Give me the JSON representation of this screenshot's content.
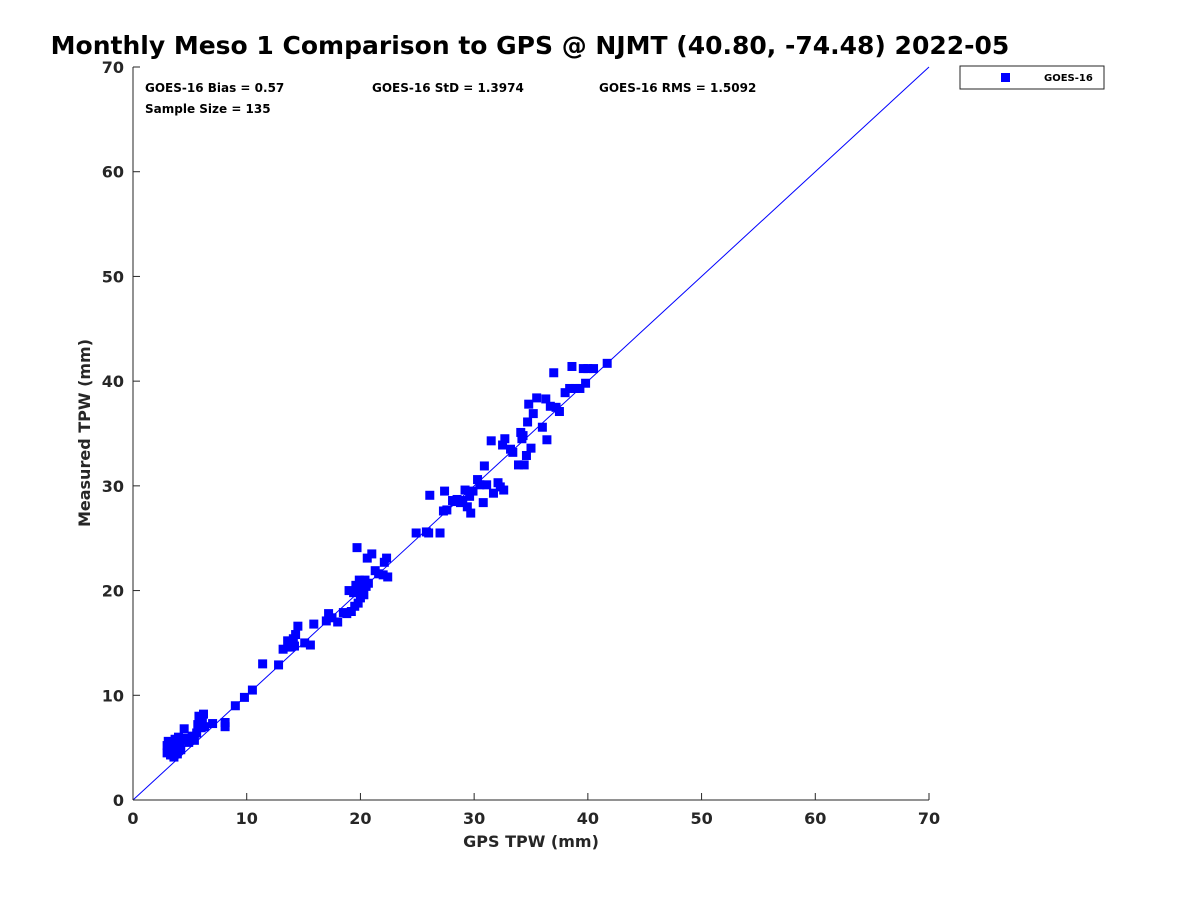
{
  "chart_data": {
    "type": "scatter",
    "title": "Monthly Meso 1 Comparison to GPS @ NJMT (40.80, -74.48) 2022-05",
    "xlabel": "GPS TPW (mm)",
    "ylabel": "Measured TPW (mm)",
    "xlim": [
      0,
      70
    ],
    "ylim": [
      0,
      70
    ],
    "xticks": [
      "0",
      "10",
      "20",
      "30",
      "40",
      "50",
      "60",
      "70"
    ],
    "yticks": [
      "0",
      "10",
      "20",
      "30",
      "40",
      "50",
      "60",
      "70"
    ],
    "grid": false,
    "legend_position": "outside-top-right",
    "reference_line": {
      "from": [
        0,
        0
      ],
      "to": [
        70,
        70
      ],
      "color": "#0000ff"
    },
    "stats": {
      "bias": "GOES-16 Bias = 0.57",
      "std": "GOES-16 StD = 1.3974",
      "rms": "GOES-16 RMS = 1.5092",
      "sample": "Sample Size = 135"
    },
    "series": [
      {
        "name": "GOES-16",
        "color": "#0000ff",
        "marker": "square",
        "points": [
          [
            3.0,
            4.5
          ],
          [
            3.0,
            5.2
          ],
          [
            3.1,
            5.6
          ],
          [
            3.2,
            4.9
          ],
          [
            3.3,
            4.3
          ],
          [
            3.4,
            5.4
          ],
          [
            3.5,
            4.6
          ],
          [
            3.6,
            4.1
          ],
          [
            3.7,
            5.8
          ],
          [
            3.8,
            5.0
          ],
          [
            3.9,
            4.4
          ],
          [
            4.0,
            6.0
          ],
          [
            4.1,
            5.3
          ],
          [
            4.2,
            4.8
          ],
          [
            4.4,
            5.7
          ],
          [
            4.5,
            6.8
          ],
          [
            4.7,
            5.9
          ],
          [
            4.9,
            5.5
          ],
          [
            5.2,
            6.1
          ],
          [
            5.4,
            5.7
          ],
          [
            5.6,
            6.4
          ],
          [
            5.7,
            7.2
          ],
          [
            5.8,
            8.0
          ],
          [
            5.9,
            7.5
          ],
          [
            6.0,
            6.9
          ],
          [
            6.1,
            7.8
          ],
          [
            6.2,
            8.2
          ],
          [
            6.3,
            7.0
          ],
          [
            7.0,
            7.3
          ],
          [
            8.1,
            7.4
          ],
          [
            8.1,
            7.0
          ],
          [
            9.0,
            9.0
          ],
          [
            9.8,
            9.8
          ],
          [
            10.5,
            10.5
          ],
          [
            11.4,
            13.0
          ],
          [
            13.2,
            14.4
          ],
          [
            13.6,
            15.2
          ],
          [
            13.8,
            14.6
          ],
          [
            14.1,
            15.4
          ],
          [
            14.2,
            14.7
          ],
          [
            14.3,
            15.8
          ],
          [
            14.5,
            16.6
          ],
          [
            15.1,
            15.0
          ],
          [
            15.6,
            14.8
          ],
          [
            15.9,
            16.8
          ],
          [
            17.0,
            17.1
          ],
          [
            17.2,
            17.8
          ],
          [
            17.5,
            17.4
          ],
          [
            18.0,
            17.0
          ],
          [
            18.8,
            17.8
          ],
          [
            19.0,
            20.0
          ],
          [
            19.2,
            18.0
          ],
          [
            19.4,
            19.8
          ],
          [
            19.5,
            18.5
          ],
          [
            19.6,
            20.5
          ],
          [
            19.7,
            24.1
          ],
          [
            19.8,
            18.8
          ],
          [
            19.9,
            21.0
          ],
          [
            20.0,
            19.3
          ],
          [
            20.1,
            20.0
          ],
          [
            20.2,
            20.8
          ],
          [
            20.3,
            19.6
          ],
          [
            20.4,
            21.0
          ],
          [
            20.5,
            20.4
          ],
          [
            20.6,
            23.1
          ],
          [
            20.7,
            20.7
          ],
          [
            21.0,
            23.5
          ],
          [
            21.3,
            21.9
          ],
          [
            21.6,
            21.6
          ],
          [
            22.0,
            21.5
          ],
          [
            22.1,
            22.7
          ],
          [
            22.3,
            23.1
          ],
          [
            22.4,
            21.3
          ],
          [
            24.9,
            25.5
          ],
          [
            26.0,
            25.5
          ],
          [
            26.1,
            29.1
          ],
          [
            27.0,
            25.5
          ],
          [
            27.3,
            27.6
          ],
          [
            27.4,
            29.5
          ],
          [
            27.6,
            27.7
          ],
          [
            28.1,
            28.6
          ],
          [
            28.3,
            28.5
          ],
          [
            28.5,
            28.7
          ],
          [
            28.8,
            28.4
          ],
          [
            29.0,
            28.6
          ],
          [
            29.2,
            29.6
          ],
          [
            29.4,
            28.0
          ],
          [
            29.6,
            29.0
          ],
          [
            29.7,
            27.4
          ],
          [
            29.9,
            29.5
          ],
          [
            30.3,
            30.6
          ],
          [
            30.8,
            28.4
          ],
          [
            30.9,
            31.9
          ],
          [
            31.1,
            30.1
          ],
          [
            31.5,
            34.3
          ],
          [
            31.7,
            29.3
          ],
          [
            32.1,
            30.3
          ],
          [
            32.3,
            29.9
          ],
          [
            32.5,
            33.9
          ],
          [
            32.6,
            29.6
          ],
          [
            32.7,
            34.5
          ],
          [
            33.2,
            33.5
          ],
          [
            33.4,
            33.2
          ],
          [
            33.9,
            32.0
          ],
          [
            34.1,
            35.1
          ],
          [
            34.2,
            34.5
          ],
          [
            34.3,
            34.8
          ],
          [
            34.4,
            32.0
          ],
          [
            34.6,
            32.9
          ],
          [
            34.7,
            36.1
          ],
          [
            34.8,
            37.8
          ],
          [
            35.0,
            33.6
          ],
          [
            35.2,
            36.9
          ],
          [
            35.5,
            38.4
          ],
          [
            36.3,
            38.3
          ],
          [
            36.4,
            34.4
          ],
          [
            36.7,
            37.6
          ],
          [
            37.0,
            40.8
          ],
          [
            37.2,
            37.5
          ],
          [
            37.5,
            37.1
          ],
          [
            38.0,
            38.9
          ],
          [
            38.4,
            39.3
          ],
          [
            38.6,
            41.4
          ],
          [
            38.9,
            39.3
          ],
          [
            39.3,
            39.3
          ],
          [
            39.6,
            41.2
          ],
          [
            39.8,
            39.8
          ],
          [
            40.0,
            41.2
          ],
          [
            40.5,
            41.2
          ],
          [
            41.7,
            41.7
          ],
          [
            30.5,
            30.1
          ],
          [
            36.0,
            35.6
          ],
          [
            25.8,
            25.6
          ],
          [
            18.5,
            17.9
          ],
          [
            12.8,
            12.9
          ]
        ]
      }
    ]
  }
}
